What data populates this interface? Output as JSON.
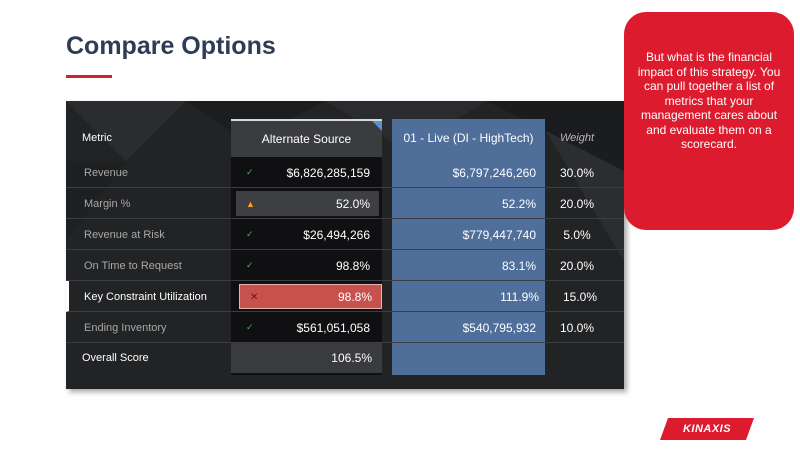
{
  "slide": {
    "title": "Compare Options",
    "accent_color": "#d0202f",
    "title_color": "#2d3d55"
  },
  "table": {
    "headers": {
      "metric": "Metric",
      "alternate": "Alternate Source",
      "live": "01 - Live (DI - HighTech)",
      "weight": "Weight"
    },
    "rows": [
      {
        "metric": "Revenue",
        "status": "check",
        "alternate": "$6,826,285,159",
        "live": "$6,797,246,260",
        "weight": "30.0%"
      },
      {
        "metric": "Margin %",
        "status": "warning",
        "alternate": "52.0%",
        "live": "52.2%",
        "weight": "20.0%"
      },
      {
        "metric": "Revenue at Risk",
        "status": "check",
        "alternate": "$26,494,266",
        "live": "$779,447,740",
        "weight": "5.0%"
      },
      {
        "metric": "On Time to Request",
        "status": "check",
        "alternate": "98.8%",
        "live": "83.1%",
        "weight": "20.0%"
      },
      {
        "metric": "Key Constraint Utilization",
        "status": "cross",
        "alternate": "98.8%",
        "live": "111.9%",
        "weight": "15.0%"
      },
      {
        "metric": "Ending Inventory",
        "status": "check",
        "alternate": "$561,051,058",
        "live": "$540,795,932",
        "weight": "10.0%"
      }
    ],
    "overall": {
      "label": "Overall Score",
      "alternate": "106.5%"
    },
    "glyphs": {
      "check": "✓",
      "warning": "▲",
      "cross": "✕"
    },
    "colors": {
      "panel": "#222325",
      "live_column": "#4f6f9a",
      "ok": "#43b649",
      "warn": "#f3a51d",
      "bad": "#c7514d"
    }
  },
  "callout": {
    "text": "But what is the financial impact of this strategy.  You can pull together a list of metrics that your management cares about and evaluate them on a scorecard.",
    "color": "#dc1c2e"
  },
  "logo": {
    "text": "KINAXIS",
    "icon": "kinaxis-logo"
  }
}
